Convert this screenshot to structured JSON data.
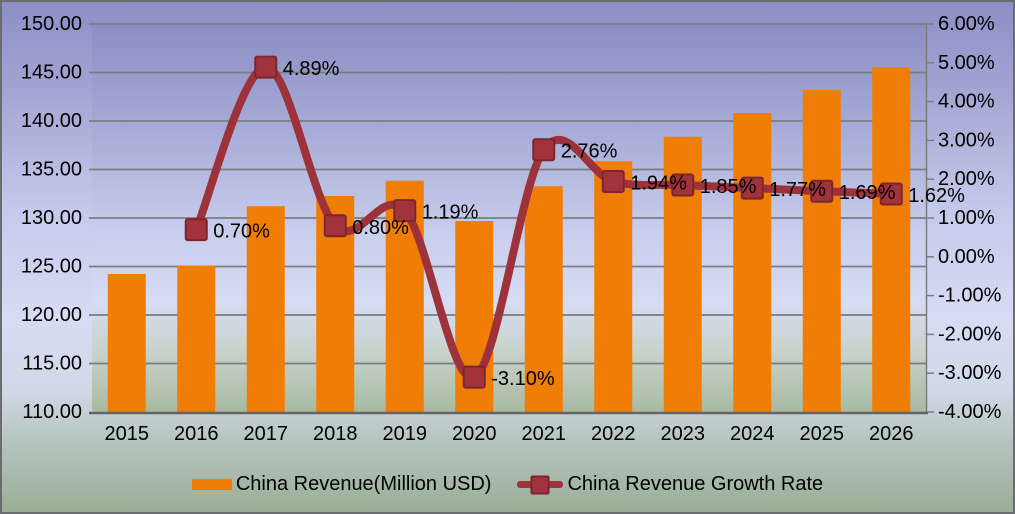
{
  "chart_data": {
    "type": "combo-bar-line",
    "title": "",
    "categories": [
      "2015",
      "2016",
      "2017",
      "2018",
      "2019",
      "2020",
      "2021",
      "2022",
      "2023",
      "2024",
      "2025",
      "2026"
    ],
    "series": [
      {
        "name": "China Revenue(Million USD)",
        "type": "bar",
        "axis": "left",
        "color": "#ef7d06",
        "values": [
          124.23,
          125.1,
          131.22,
          132.27,
          133.84,
          129.69,
          133.27,
          135.86,
          138.37,
          140.82,
          143.2,
          145.52
        ]
      },
      {
        "name": "China Revenue Growth Rate",
        "type": "line",
        "axis": "right",
        "color": "#9e323b",
        "marker_fill": "#a2333c",
        "marker_border": "#7b262d",
        "start_index": 1,
        "values": [
          0.7,
          4.89,
          0.8,
          1.19,
          -3.1,
          2.76,
          1.94,
          1.85,
          1.77,
          1.69,
          1.62
        ],
        "labels": [
          "0.70%",
          "4.89%",
          "0.80%",
          "1.19%",
          "-3.10%",
          "2.76%",
          "1.94%",
          "1.85%",
          "1.77%",
          "1.69%",
          "1.62%"
        ]
      }
    ],
    "left_axis": {
      "min": 110,
      "max": 150,
      "step": 5,
      "tick_values": [
        150,
        145,
        140,
        135,
        130,
        125,
        120,
        115,
        110
      ],
      "tick_labels": [
        "150.00",
        "145.00",
        "140.00",
        "135.00",
        "130.00",
        "125.00",
        "120.00",
        "115.00",
        "110.00"
      ]
    },
    "right_axis": {
      "min": -4,
      "max": 6,
      "step": 1,
      "tick_values": [
        6,
        5,
        4,
        3,
        2,
        1,
        0,
        -1,
        -2,
        -3,
        -4
      ],
      "tick_labels": [
        "6.00%",
        "5.00%",
        "4.00%",
        "3.00%",
        "2.00%",
        "1.00%",
        "0.00%",
        "-1.00%",
        "-2.00%",
        "-3.00%",
        "-4.00%"
      ]
    },
    "grid": true,
    "legend_position": "bottom",
    "colors": {
      "grid": "#7c7c7c",
      "axis_line": "#646464",
      "text": "#000000"
    }
  },
  "legend": {
    "items": [
      {
        "label": "China Revenue(Million USD)"
      },
      {
        "label": "China Revenue Growth Rate"
      }
    ]
  }
}
